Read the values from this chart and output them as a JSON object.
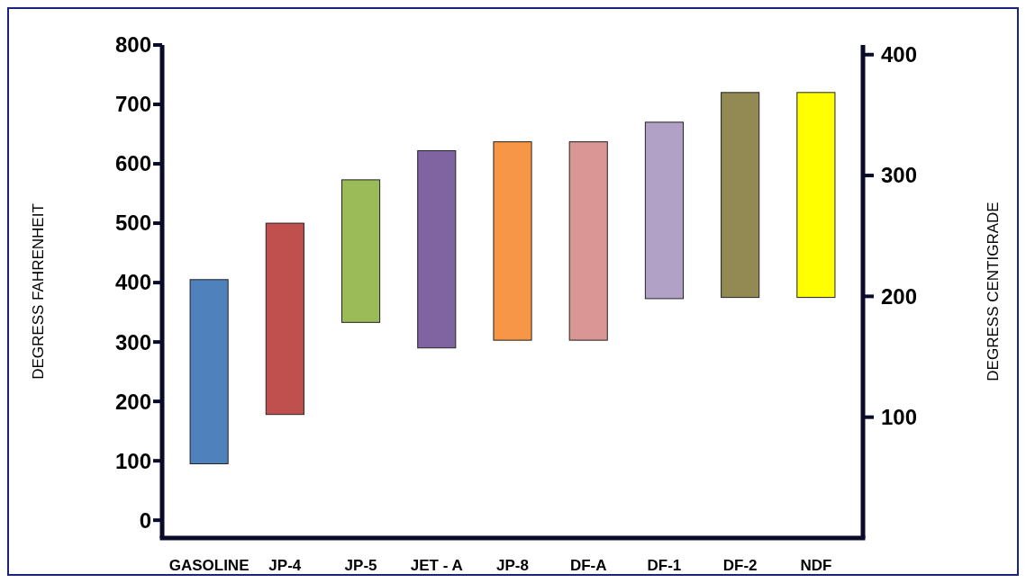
{
  "chart_data": {
    "type": "bar",
    "ylabel": "DEGRESS  FAHRENHEIT",
    "y2label": "DEGRESS  CENTIGRADE",
    "categories": [
      "GASOLINE",
      "JP-4",
      "JP-5",
      "JET - A",
      "JP-8",
      "DF-A",
      "DF-1",
      "DF-2",
      "NDF"
    ],
    "base": [
      95,
      178,
      333,
      290,
      303,
      303,
      373,
      375,
      375
    ],
    "values": [
      310,
      322,
      240,
      332,
      334,
      334,
      297,
      345,
      345
    ],
    "colors": [
      "#4f81bd",
      "#c0504d",
      "#9bbb59",
      "#8064a2",
      "#f79646",
      "#d99694",
      "#b2a1c7",
      "#938953",
      "#ffff00"
    ],
    "ylim": [
      -30,
      800
    ],
    "yticks": [
      0,
      100,
      200,
      300,
      400,
      500,
      600,
      700,
      800
    ],
    "y2lim": [
      0,
      408
    ],
    "y2ticks": [
      100,
      200,
      300,
      400
    ],
    "grid": false
  }
}
